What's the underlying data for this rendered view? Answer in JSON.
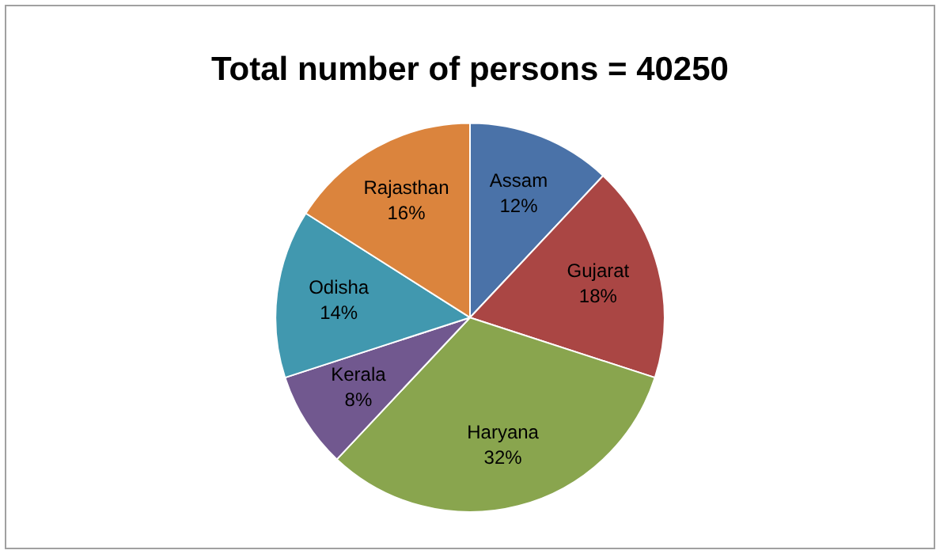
{
  "chart_data": {
    "type": "pie",
    "title": "Total number of persons = 40250",
    "categories": [
      "Assam",
      "Gujarat",
      "Haryana",
      "Kerala",
      "Odisha",
      "Rajasthan"
    ],
    "values": [
      12,
      18,
      32,
      8,
      14,
      16
    ],
    "value_labels": [
      "12%",
      "18%",
      "32%",
      "8%",
      "14%",
      "16%"
    ],
    "colors": [
      "#4a72a8",
      "#aa4644",
      "#89a54e",
      "#71588f",
      "#4198af",
      "#db843d"
    ],
    "legend": false
  }
}
